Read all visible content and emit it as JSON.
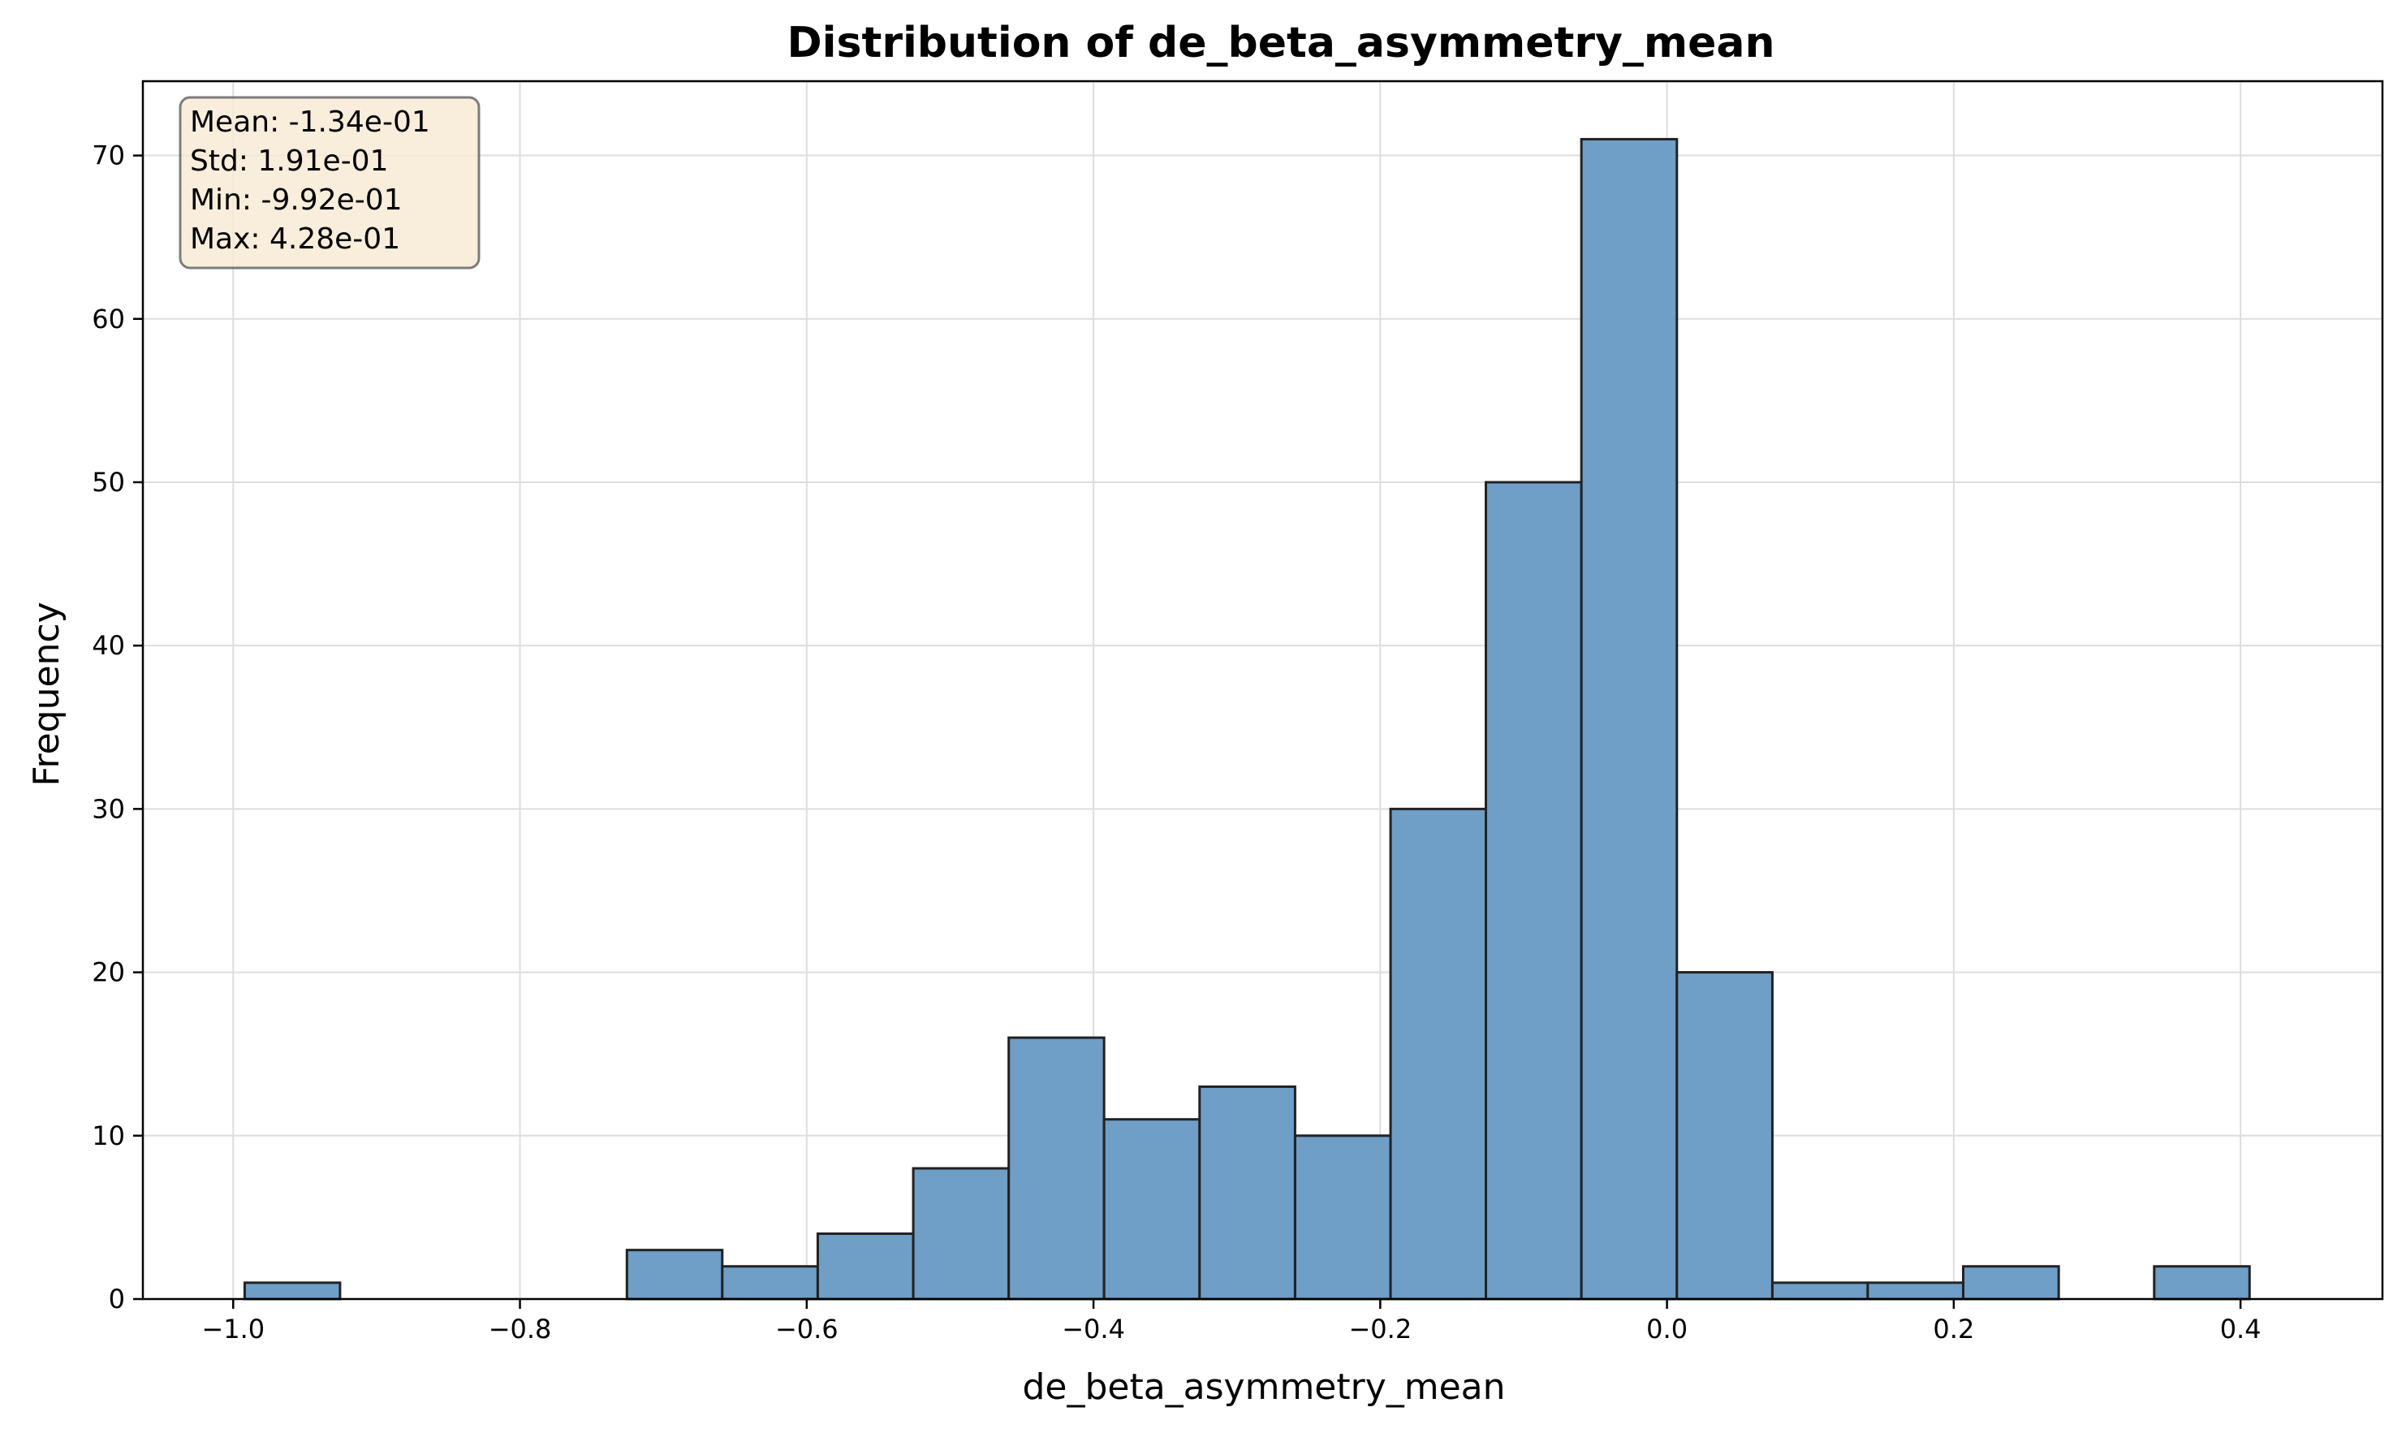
{
  "chart_data": {
    "type": "bar",
    "title": "Distribution of de_beta_asymmetry_mean",
    "xlabel": "de_beta_asymmetry_mean",
    "ylabel": "Frequency",
    "xlim": [
      -1.063,
      0.499
    ],
    "ylim": [
      0,
      74.55
    ],
    "grid": true,
    "bar_color": "#6f9ec7",
    "edge_color": "#222222",
    "bin_edges": [
      -0.992,
      -0.9209,
      -0.8499,
      -0.7789,
      -0.7078,
      -0.6368,
      -0.5658,
      -0.4947,
      -0.4237,
      -0.3527,
      -0.2816,
      -0.2106,
      -0.1396,
      -0.0685,
      0.0025,
      0.0735,
      0.1446,
      0.2156,
      0.2866,
      0.3577,
      0.4287
    ],
    "bins": [
      {
        "x0": -0.992,
        "x1": -0.9255,
        "count": 1
      },
      {
        "x0": -0.7254,
        "x1": -0.6589,
        "count": 3
      },
      {
        "x0": -0.6589,
        "x1": -0.5923,
        "count": 2
      },
      {
        "x0": -0.5923,
        "x1": -0.5257,
        "count": 4
      },
      {
        "x0": -0.5257,
        "x1": -0.4591,
        "count": 8
      },
      {
        "x0": -0.4591,
        "x1": -0.3926,
        "count": 16
      },
      {
        "x0": -0.3926,
        "x1": -0.326,
        "count": 11
      },
      {
        "x0": -0.326,
        "x1": -0.2594,
        "count": 13
      },
      {
        "x0": -0.2594,
        "x1": -0.1928,
        "count": 10
      },
      {
        "x0": -0.1928,
        "x1": -0.1263,
        "count": 30
      },
      {
        "x0": -0.1263,
        "x1": -0.0597,
        "count": 50
      },
      {
        "x0": -0.0597,
        "x1": 0.0069,
        "count": 71
      },
      {
        "x0": 0.0069,
        "x1": 0.0735,
        "count": 20
      },
      {
        "x0": 0.0735,
        "x1": 0.14,
        "count": 1
      },
      {
        "x0": 0.14,
        "x1": 0.2066,
        "count": 1
      },
      {
        "x0": 0.2066,
        "x1": 0.2732,
        "count": 2
      },
      {
        "x0": 0.3398,
        "x1": 0.4063,
        "count": 2
      }
    ],
    "x_ticks": [
      {
        "value": -1.0,
        "label": "−1.0"
      },
      {
        "value": -0.8,
        "label": "−0.8"
      },
      {
        "value": -0.6,
        "label": "−0.6"
      },
      {
        "value": -0.4,
        "label": "−0.4"
      },
      {
        "value": -0.2,
        "label": "−0.2"
      },
      {
        "value": 0.0,
        "label": "0.0"
      },
      {
        "value": 0.2,
        "label": "0.2"
      },
      {
        "value": 0.4,
        "label": "0.4"
      }
    ],
    "y_ticks": [
      {
        "value": 0,
        "label": "0"
      },
      {
        "value": 10,
        "label": "10"
      },
      {
        "value": 20,
        "label": "20"
      },
      {
        "value": 30,
        "label": "30"
      },
      {
        "value": 40,
        "label": "40"
      },
      {
        "value": 50,
        "label": "50"
      },
      {
        "value": 60,
        "label": "60"
      },
      {
        "value": 70,
        "label": "70"
      }
    ],
    "stats_box": {
      "lines": [
        "Mean: -1.34e-01",
        "Std: 1.91e-01",
        "Min: -9.92e-01",
        "Max: 4.28e-01"
      ],
      "placement": "top-left",
      "background": "#f8ebd5",
      "border": "#666666"
    }
  }
}
